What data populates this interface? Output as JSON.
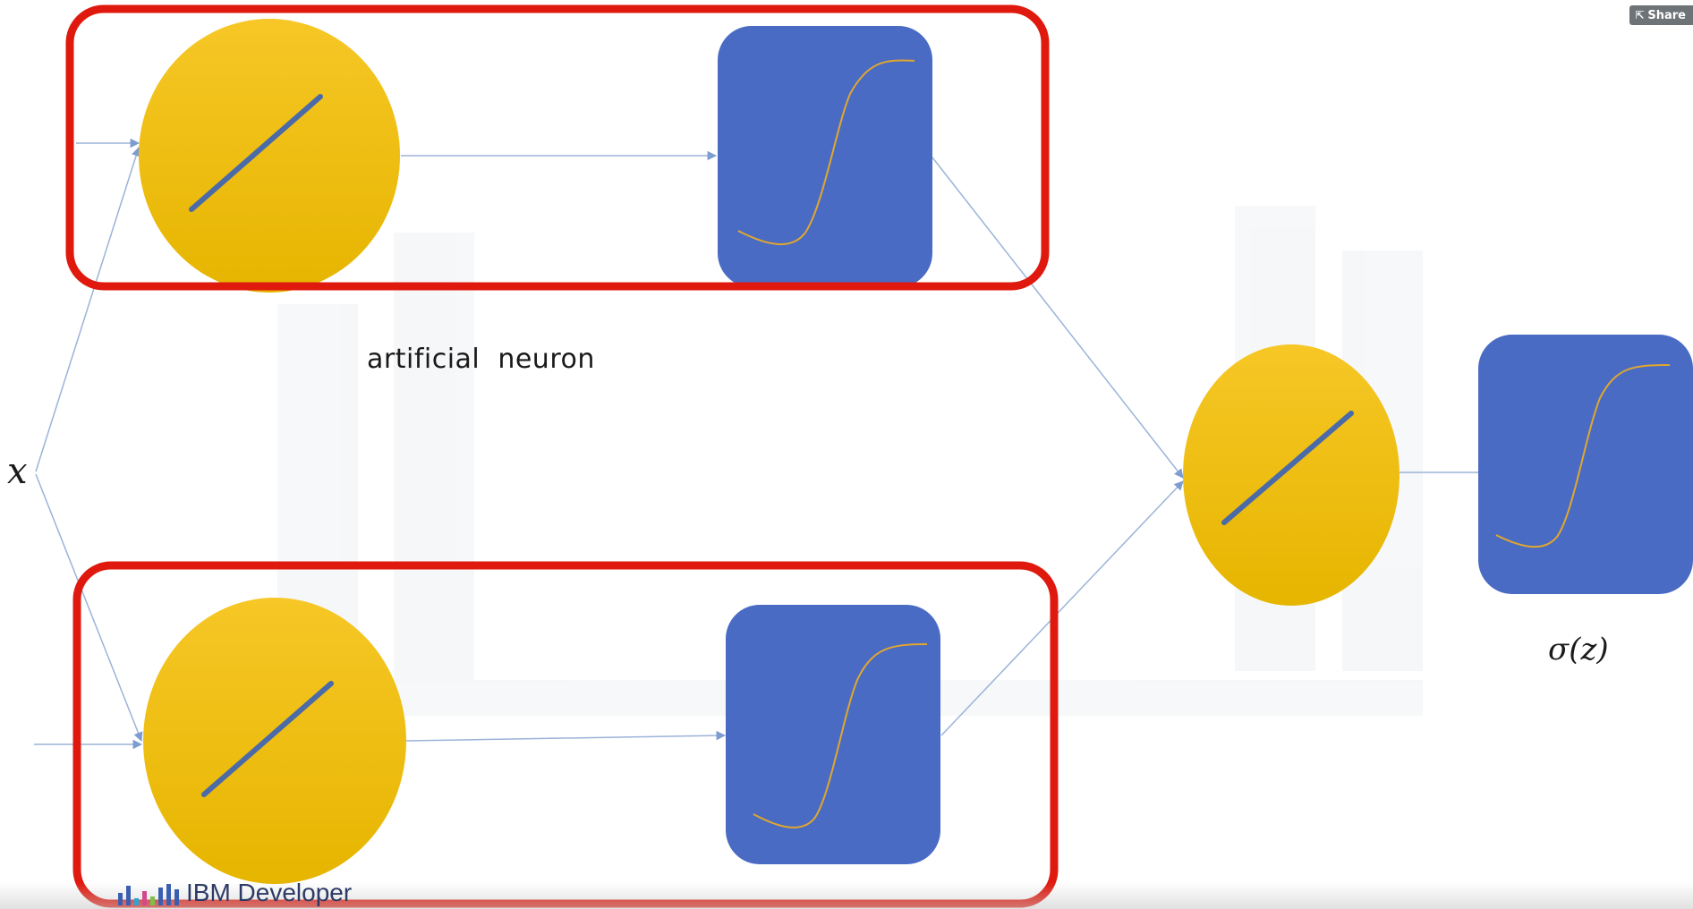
{
  "header": {
    "share_label": "Share",
    "share_icon": "share-icon"
  },
  "diagram": {
    "input_label": "x",
    "neuron_label": "artificial  neuron",
    "output_label": "σ(z)",
    "branding": "IBM Developer"
  },
  "colors": {
    "neuron_fill": "#f2c200",
    "activation_fill": "#4a6bc4",
    "highlight_border": "#e0190e",
    "connector": "#9bb3d8",
    "linear_line": "#4a6aa8",
    "sigmoid_curve": "#e0a72e"
  }
}
